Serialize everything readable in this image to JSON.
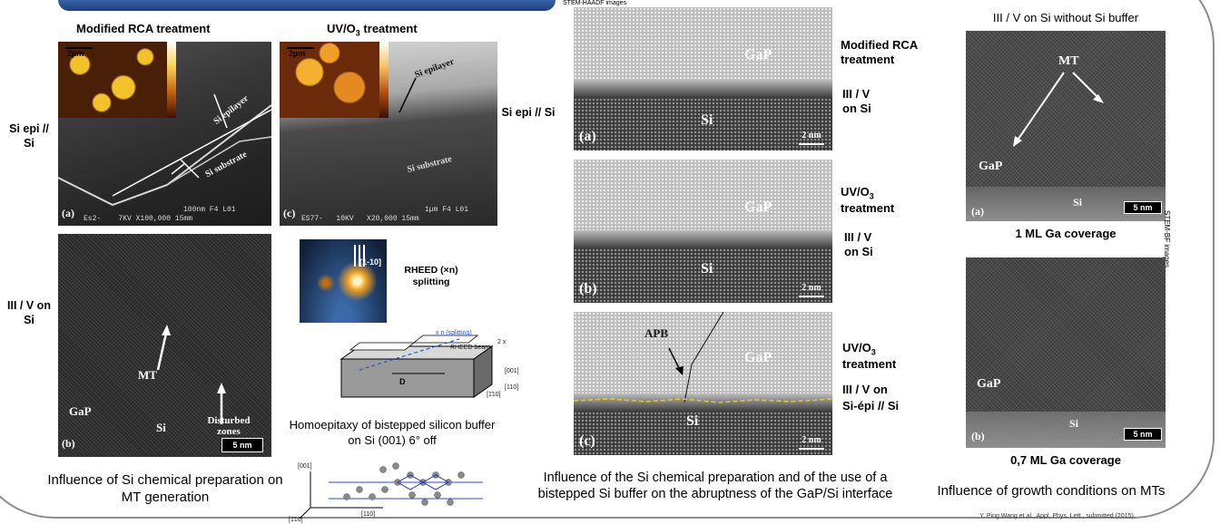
{
  "left": {
    "title_rca": "Modified RCA treatment",
    "title_uv_prefix": "UV/O",
    "title_uv_sub": "3",
    "title_uv_suffix": " treatment",
    "label_si_epi_left": "Si epi // Si",
    "label_si_epi_right": "Si epi // Si",
    "label_iii_v": "III / V on Si",
    "sem_a": {
      "scale": "2µm",
      "epilayer": "Si epilayer",
      "substrate": "Si substrate",
      "panel": "(a)",
      "footer": "Es2-    7KV X100,000 15mm",
      "footer_scale": "100nm F4 L01"
    },
    "sem_c": {
      "scale": "2µm",
      "epilayer": "Si epilayer",
      "substrate": "Si substrate",
      "panel": "(c)",
      "footer": "ES77-   10KV   X20,000 15mm",
      "footer_scale": "1µm F4 L01"
    },
    "tem_b": {
      "mt": "MT",
      "gap": "GaP",
      "si": "Si",
      "disturbed": "Disturbed zones",
      "panel": "(b)",
      "scale": "5 nm"
    },
    "rheed": {
      "direction": "[1-10]",
      "title": "RHEED (×n) splitting",
      "beam": "RHEED beam",
      "xn": "x n (splitting)",
      "two_x": "2 x",
      "d": "D",
      "ax001": "[001]",
      "ax110": "[110]",
      "ax1b10": "[1̄10]"
    },
    "homoepi": "Homoepitaxy of bistepped silicon buffer on Si (001) 6° off",
    "caption": "Influence of Si chemical preparation on MT generation",
    "lattice_axes": {
      "a": "[001]",
      "b": "[110]",
      "c": "[1̄10]"
    }
  },
  "middle": {
    "stem_label": "STEM-HAADF images",
    "panels": [
      {
        "panel": "(a)",
        "gap": "GaP",
        "si": "Si",
        "scale": "2 nm",
        "l1": "Modified RCA",
        "l2": "treatment",
        "l3": "III / V",
        "l4": "on Si"
      },
      {
        "panel": "(b)",
        "gap": "GaP",
        "si": "Si",
        "scale": "2 nm",
        "l1_prefix": "UV/O",
        "l1_sub": "3",
        "l2": "treatment",
        "l3": "III / V",
        "l4": "on Si"
      },
      {
        "panel": "(c)",
        "gap": "GaP",
        "si": "Si",
        "scale": "2 nm",
        "apb": "APB",
        "l1_prefix": "UV/O",
        "l1_sub": "3",
        "l2": "treatment",
        "l3": "III / V on",
        "l4": "Si-épi // Si"
      }
    ],
    "caption": "Influence of the Si chemical preparation and of the use of a bistepped Si buffer on the abruptness of the GaP/Si interface"
  },
  "right": {
    "title": "III / V  on Si without Si buffer",
    "top": {
      "mt": "MT",
      "gap": "GaP",
      "si": "Si",
      "panel": "(a)",
      "scale": "5 nm",
      "coverage": "1 ML Ga coverage"
    },
    "bottom": {
      "gap": "GaP",
      "si": "Si",
      "panel": "(b)",
      "scale": "5 nm",
      "coverage": "0,7 ML Ga coverage"
    },
    "stem_bf": "STEM-BF images",
    "caption": "Influence of growth conditions on MTs",
    "reference": "Y. Ping Wang et al., Appl. Phys. Lett., submitted (2015)."
  }
}
